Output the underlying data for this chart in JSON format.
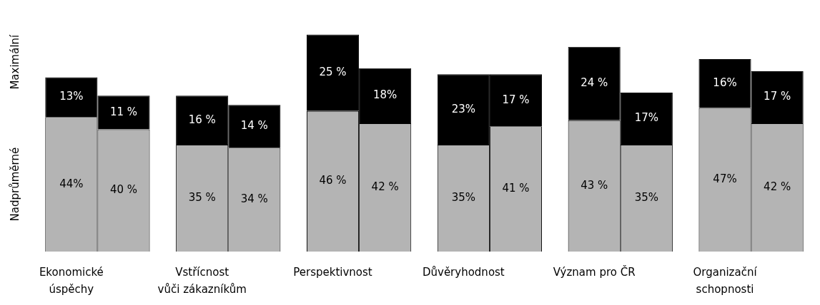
{
  "chart_data": {
    "type": "bar",
    "stacked": true,
    "legend": false,
    "categories": [
      "Ekonomické úspěchy",
      null,
      "Vstřícnost vůči zákazníkům",
      null,
      "Perspektivnost",
      null,
      "Důvěryhodnost",
      null,
      "Význam pro ČR",
      null,
      "Organizační schopnosti",
      null
    ],
    "series": [
      {
        "name": "Nadprůměrné",
        "color": "#b4b4b4",
        "values": [
          44,
          40,
          35,
          34,
          46,
          42,
          35,
          41,
          43,
          35,
          47,
          42
        ],
        "value_labels": [
          "44%",
          "40 %",
          "35 %",
          "34 %",
          "46 %",
          "42 %",
          "35%",
          "41 %",
          "43 %",
          "35%",
          "47%",
          "42 %"
        ]
      },
      {
        "name": "Maximální",
        "color": "#000000",
        "values": [
          13,
          11,
          16,
          14,
          25,
          18,
          23,
          17,
          24,
          17,
          16,
          17
        ],
        "value_labels": [
          "13%",
          "11 %",
          "16 %",
          "14 %",
          "25 %",
          "18%",
          "23%",
          "17 %",
          "24 %",
          "17%",
          "16%",
          "17 %"
        ]
      }
    ]
  }
}
